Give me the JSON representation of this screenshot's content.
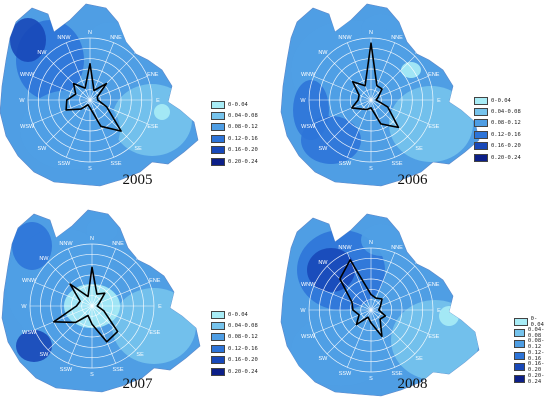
{
  "legend": {
    "items": [
      {
        "label": "0-0.04",
        "color": "#a8ecf6"
      },
      {
        "label": "0.04-0.08",
        "color": "#76c3ec"
      },
      {
        "label": "0.08-0.12",
        "color": "#4f9ee4"
      },
      {
        "label": "0.12-0.16",
        "color": "#2d74d8"
      },
      {
        "label": "0.16-0.20",
        "color": "#1848b8"
      },
      {
        "label": "0.20-0.24",
        "color": "#0c1f88"
      }
    ]
  },
  "directions": [
    "N",
    "NNE",
    "NE",
    "ENE",
    "E",
    "ESE",
    "SE",
    "SSE",
    "S",
    "SSW",
    "SW",
    "WSW",
    "W",
    "WNW",
    "NW",
    "NNW"
  ],
  "panels": [
    {
      "year": "2005",
      "wind": [
        0.14,
        0.04,
        0.09,
        0.03,
        0.03,
        0.07,
        0.17,
        0.11,
        0.03,
        0.02,
        0.05,
        0.1,
        0.09,
        0.06,
        0.09,
        0.05
      ]
    },
    {
      "year": "2006",
      "wind": [
        0.22,
        0.06,
        0.06,
        0.03,
        0.02,
        0.07,
        0.15,
        0.1,
        0.03,
        0.04,
        0.05,
        0.08,
        0.05,
        0.05,
        0.1,
        0.06
      ]
    },
    {
      "year": "2007",
      "wind": [
        0.15,
        0.05,
        0.07,
        0.03,
        0.02,
        0.05,
        0.14,
        0.15,
        0.07,
        0.04,
        0.09,
        0.16,
        0.06,
        0.05,
        0.12,
        0.04
      ]
    },
    {
      "year": "2008",
      "wind": [
        0.06,
        0.05,
        0.06,
        0.04,
        0.03,
        0.06,
        0.05,
        0.11,
        0.05,
        0.03,
        0.08,
        0.05,
        0.07,
        0.08,
        0.17,
        0.21
      ]
    }
  ]
}
